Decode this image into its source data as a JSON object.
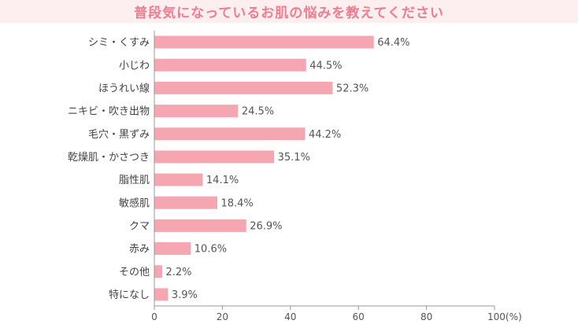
{
  "chart_data": {
    "type": "bar",
    "orientation": "horizontal",
    "title": "普段気になっているお肌の悩みを教えてください",
    "categories": [
      "シミ・くすみ",
      "小じわ",
      "ほうれい線",
      "ニキビ・吹き出物",
      "毛穴・黒ずみ",
      "乾燥肌・かさつき",
      "脂性肌",
      "敏感肌",
      "クマ",
      "赤み",
      "その他",
      "特になし"
    ],
    "values": [
      64.4,
      44.5,
      52.3,
      24.5,
      44.2,
      35.1,
      14.1,
      18.4,
      26.9,
      10.6,
      2.2,
      3.9
    ],
    "value_labels": [
      "64.4%",
      "44.5%",
      "52.3%",
      "24.5%",
      "44.2%",
      "35.1%",
      "14.1%",
      "18.4%",
      "26.9%",
      "10.6%",
      "2.2%",
      "3.9%"
    ],
    "xlim": [
      0,
      100
    ],
    "xticks": [
      0,
      20,
      40,
      60,
      80,
      100
    ],
    "xtick_labels": [
      "0",
      "20",
      "40",
      "60",
      "80",
      "100(%)"
    ],
    "grid": false,
    "bar_color": "#f6a6b0",
    "title_color": "#ef7d8f",
    "title_bg": "#fdeef0"
  }
}
